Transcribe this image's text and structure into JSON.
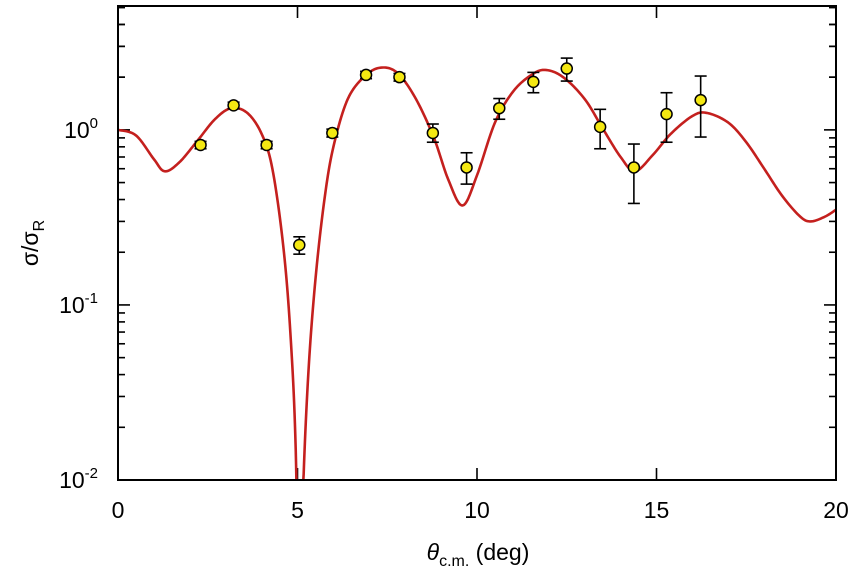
{
  "chart_data": {
    "type": "scatter",
    "title": "",
    "xlabel": {
      "symbol": "θ",
      "sub": "c.m.",
      "unit": " (deg)"
    },
    "ylabel": {
      "base": "σ/σ",
      "sub": "R"
    },
    "xlim": [
      0,
      20
    ],
    "ylim": [
      0.01,
      5.1
    ],
    "yscale": "log",
    "grid": false,
    "xticks": [
      0,
      5,
      10,
      15,
      20
    ],
    "xtick_labels": [
      "0",
      "5",
      "10",
      "15",
      "20"
    ],
    "yticks": [
      {
        "base": "10",
        "exp": "-2",
        "value": 0.01
      },
      {
        "base": "10",
        "exp": "-1",
        "value": 0.1
      },
      {
        "base": "10",
        "exp": "0",
        "value": 1
      }
    ],
    "colors": {
      "curve": "#c4201e",
      "marker_fill": "#f4e812",
      "marker_edge": "#000000"
    },
    "series": [
      {
        "name": "data",
        "kind": "points-with-errorbars",
        "x": [
          2.3,
          3.22,
          4.14,
          5.05,
          5.97,
          6.91,
          7.84,
          8.77,
          9.71,
          10.62,
          11.57,
          12.5,
          13.43,
          14.37,
          15.28,
          16.23
        ],
        "y": [
          0.82,
          1.38,
          0.82,
          0.22,
          0.96,
          2.06,
          2.0,
          0.96,
          0.61,
          1.33,
          1.88,
          2.24,
          1.04,
          0.61,
          1.23,
          1.48
        ],
        "ylo": [
          0.78,
          1.32,
          0.78,
          0.195,
          0.91,
          1.96,
          1.9,
          0.85,
          0.49,
          1.15,
          1.63,
          1.9,
          0.78,
          0.38,
          0.85,
          0.91
        ],
        "yhi": [
          0.86,
          1.44,
          0.86,
          0.245,
          1.01,
          2.16,
          2.1,
          1.08,
          0.74,
          1.51,
          2.13,
          2.57,
          1.31,
          0.83,
          1.63,
          2.03
        ]
      },
      {
        "name": "theory",
        "kind": "line",
        "x": [
          0,
          0.5,
          1.0,
          1.3,
          1.7,
          2.2,
          2.7,
          3.15,
          3.6,
          4.0,
          4.3,
          4.6,
          4.8,
          4.95,
          5.05,
          5.15,
          5.3,
          5.5,
          5.75,
          6.0,
          6.4,
          6.9,
          7.35,
          7.8,
          8.3,
          8.8,
          9.2,
          9.6,
          10.0,
          10.5,
          11.0,
          11.5,
          11.9,
          12.4,
          13.0,
          13.5,
          14.0,
          14.4,
          14.9,
          15.4,
          16.0,
          16.4,
          17.0,
          17.5,
          18.0,
          18.5,
          19.0,
          19.3,
          19.7,
          20.0
        ],
        "y": [
          1.0,
          0.93,
          0.68,
          0.58,
          0.65,
          0.86,
          1.15,
          1.33,
          1.25,
          0.95,
          0.6,
          0.22,
          0.07,
          0.015,
          0.001,
          0.008,
          0.04,
          0.14,
          0.4,
          0.8,
          1.5,
          2.05,
          2.27,
          2.1,
          1.5,
          0.9,
          0.52,
          0.37,
          0.55,
          1.1,
          1.65,
          2.05,
          2.2,
          2.0,
          1.5,
          1.02,
          0.7,
          0.58,
          0.72,
          0.95,
          1.2,
          1.25,
          1.1,
          0.85,
          0.6,
          0.42,
          0.32,
          0.3,
          0.32,
          0.35
        ]
      }
    ]
  }
}
